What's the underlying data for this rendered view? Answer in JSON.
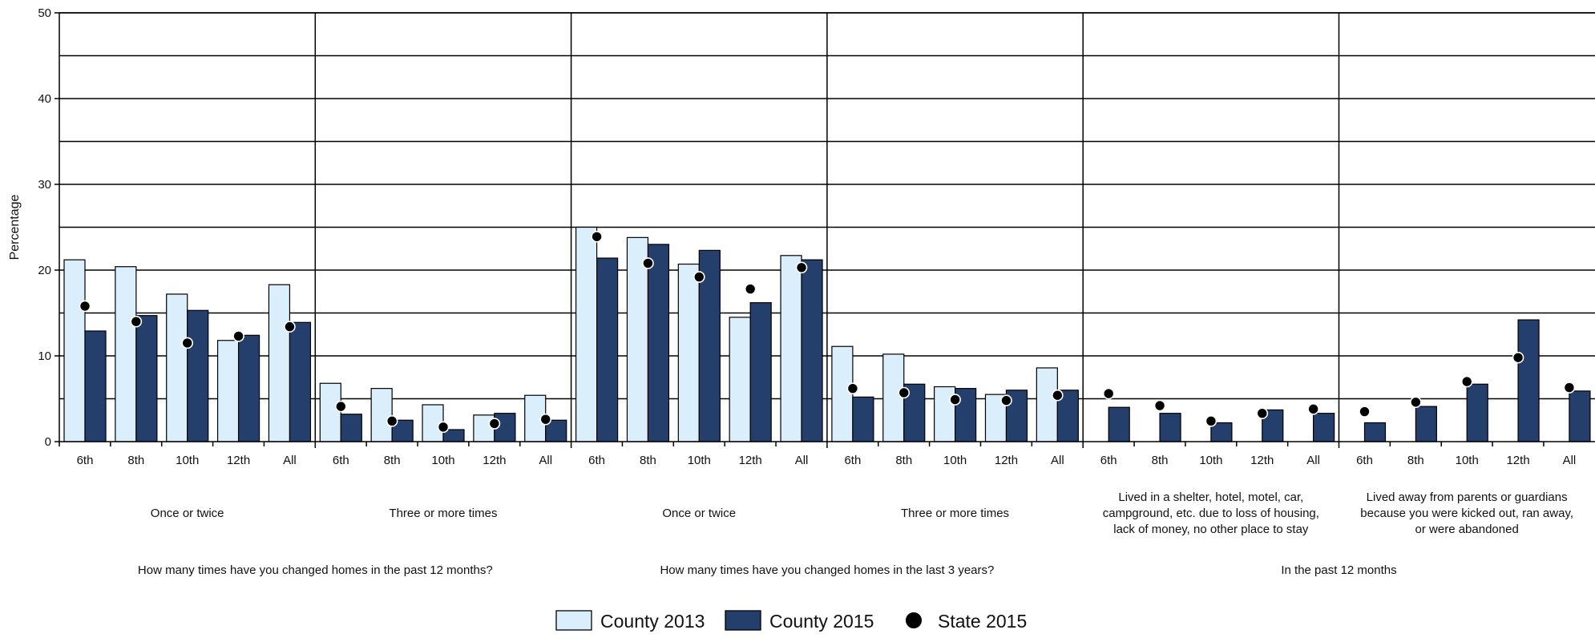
{
  "colors": {
    "county_2013": "#dbeefb",
    "county_2015": "#243f6b",
    "state_2015": "#000000",
    "grid": "#000000"
  },
  "chart_data": {
    "type": "bar",
    "ylabel": "Percentage",
    "ylim": [
      0,
      50
    ],
    "yticks": [
      0,
      10,
      20,
      30,
      40,
      50
    ],
    "grid": true,
    "legend_position": "bottom-center",
    "legend": [
      {
        "name": "County 2013",
        "marker": "bar-light"
      },
      {
        "name": "County 2015",
        "marker": "bar-dark"
      },
      {
        "name": "State 2015",
        "marker": "dot"
      }
    ],
    "grade_labels": [
      "6th",
      "8th",
      "10th",
      "12th",
      "All"
    ],
    "panels": [
      {
        "label": [
          "Once or twice"
        ],
        "county_2013": [
          21.2,
          20.4,
          17.2,
          11.8,
          18.3
        ],
        "county_2015": [
          12.9,
          14.7,
          15.3,
          12.4,
          13.9
        ],
        "state_2015": [
          15.8,
          14.0,
          11.5,
          12.3,
          13.4
        ]
      },
      {
        "label": [
          "Three or more times"
        ],
        "county_2013": [
          6.8,
          6.2,
          4.3,
          3.1,
          5.4
        ],
        "county_2015": [
          3.2,
          2.5,
          1.4,
          3.3,
          2.5
        ],
        "state_2015": [
          4.1,
          2.4,
          1.7,
          2.1,
          2.6
        ]
      },
      {
        "label": [
          "Once or twice"
        ],
        "county_2013": [
          25.0,
          23.8,
          20.7,
          14.5,
          21.7
        ],
        "county_2015": [
          21.4,
          23.0,
          22.3,
          16.2,
          21.2
        ],
        "state_2015": [
          23.9,
          20.8,
          19.2,
          17.8,
          20.3
        ]
      },
      {
        "label": [
          "Three or more times"
        ],
        "county_2013": [
          11.1,
          10.2,
          6.4,
          5.5,
          8.6
        ],
        "county_2015": [
          5.2,
          6.7,
          6.2,
          6.0,
          6.0
        ],
        "state_2015": [
          6.2,
          5.7,
          4.9,
          4.8,
          5.4
        ]
      },
      {
        "label": [
          "Lived in a shelter, hotel, motel, car,",
          "campground, etc. due to loss of housing,",
          "lack of money, no other place to stay"
        ],
        "county_2013": [
          null,
          null,
          null,
          null,
          null
        ],
        "county_2015": [
          4.0,
          3.3,
          2.2,
          3.7,
          3.3
        ],
        "state_2015": [
          5.6,
          4.2,
          2.4,
          3.3,
          3.8
        ]
      },
      {
        "label": [
          "Lived away from parents or guardians",
          "because you were kicked out, ran away,",
          "or were abandoned"
        ],
        "county_2013": [
          null,
          null,
          null,
          null,
          null
        ],
        "county_2015": [
          2.2,
          4.1,
          6.7,
          14.2,
          5.9
        ],
        "state_2015": [
          3.5,
          4.6,
          7.0,
          9.8,
          6.3
        ]
      }
    ],
    "groups": [
      {
        "label": "How many times have you changed homes in the past 12 months?",
        "panels": [
          0,
          1
        ]
      },
      {
        "label": "How many times have you changed homes in the last 3 years?",
        "panels": [
          2,
          3
        ]
      },
      {
        "label": "In the past 12 months",
        "panels": [
          4,
          5
        ]
      }
    ]
  }
}
